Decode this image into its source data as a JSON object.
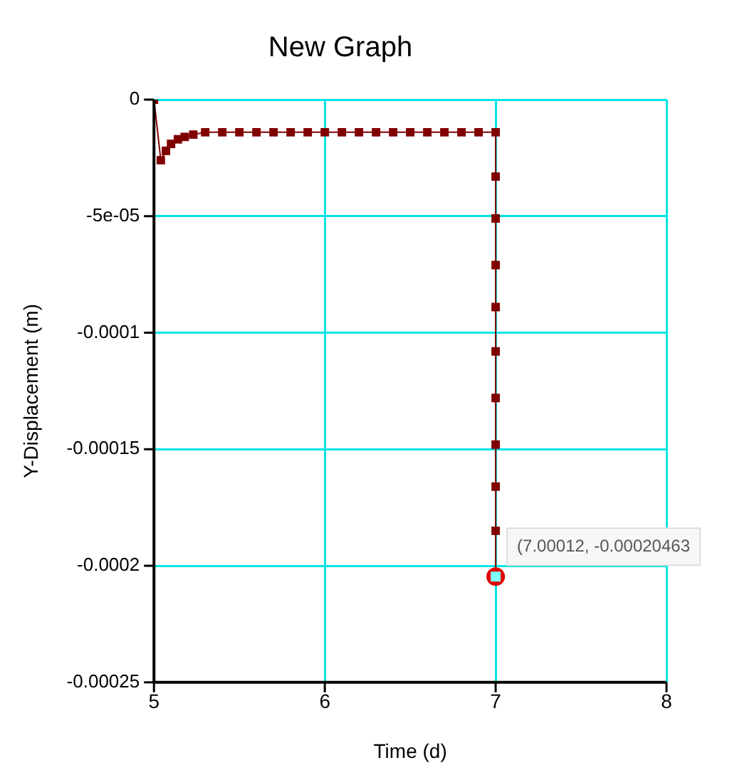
{
  "chart_data": {
    "type": "line",
    "title": "New Graph",
    "xlabel": "Time (d)",
    "ylabel": "Y-Displacement (m)",
    "series": [
      {
        "color": "#800000",
        "x": [
          5,
          5.04,
          5.07,
          5.1,
          5.14,
          5.18,
          5.23,
          5.3,
          5.4,
          5.5,
          5.6,
          5.7,
          5.8,
          5.9,
          6,
          6.1,
          6.2,
          6.3,
          6.4,
          6.5,
          6.6,
          6.7,
          6.8,
          6.9,
          7,
          7,
          7,
          7,
          7,
          7,
          7,
          7,
          7,
          7,
          7.00012
        ],
        "values": [
          0,
          -2.6e-05,
          -2.2e-05,
          -1.9e-05,
          -1.7e-05,
          -1.6e-05,
          -1.5e-05,
          -1.4e-05,
          -1.4e-05,
          -1.4e-05,
          -1.4e-05,
          -1.4e-05,
          -1.4e-05,
          -1.4e-05,
          -1.4e-05,
          -1.4e-05,
          -1.4e-05,
          -1.4e-05,
          -1.4e-05,
          -1.4e-05,
          -1.4e-05,
          -1.4e-05,
          -1.4e-05,
          -1.4e-05,
          -1.4e-05,
          -3.3e-05,
          -5.1e-05,
          -7.1e-05,
          -8.9e-05,
          -0.000108,
          -0.000128,
          -0.000148,
          -0.000166,
          -0.000185,
          -0.00020463
        ]
      }
    ],
    "xlim": [
      5,
      8
    ],
    "xticks": [
      5,
      6,
      7,
      8
    ],
    "ylim": [
      -0.00025,
      0
    ],
    "yticks": [
      {
        "value": -0.00025,
        "label": "-0.00025"
      },
      {
        "value": -0.0002,
        "label": "-0.0002"
      },
      {
        "value": -0.00015,
        "label": "-0.00015"
      },
      {
        "value": -0.0001,
        "label": "-0.0001"
      },
      {
        "value": -5e-05,
        "label": "-5e-05"
      },
      {
        "value": 0,
        "label": "0"
      }
    ],
    "grid": true,
    "legend": false,
    "marker": "square",
    "line_style": "solid",
    "annotations": [
      {
        "text": "(7.00012, -0.00020463",
        "x": 7.00012,
        "y": -0.00020463
      }
    ]
  }
}
